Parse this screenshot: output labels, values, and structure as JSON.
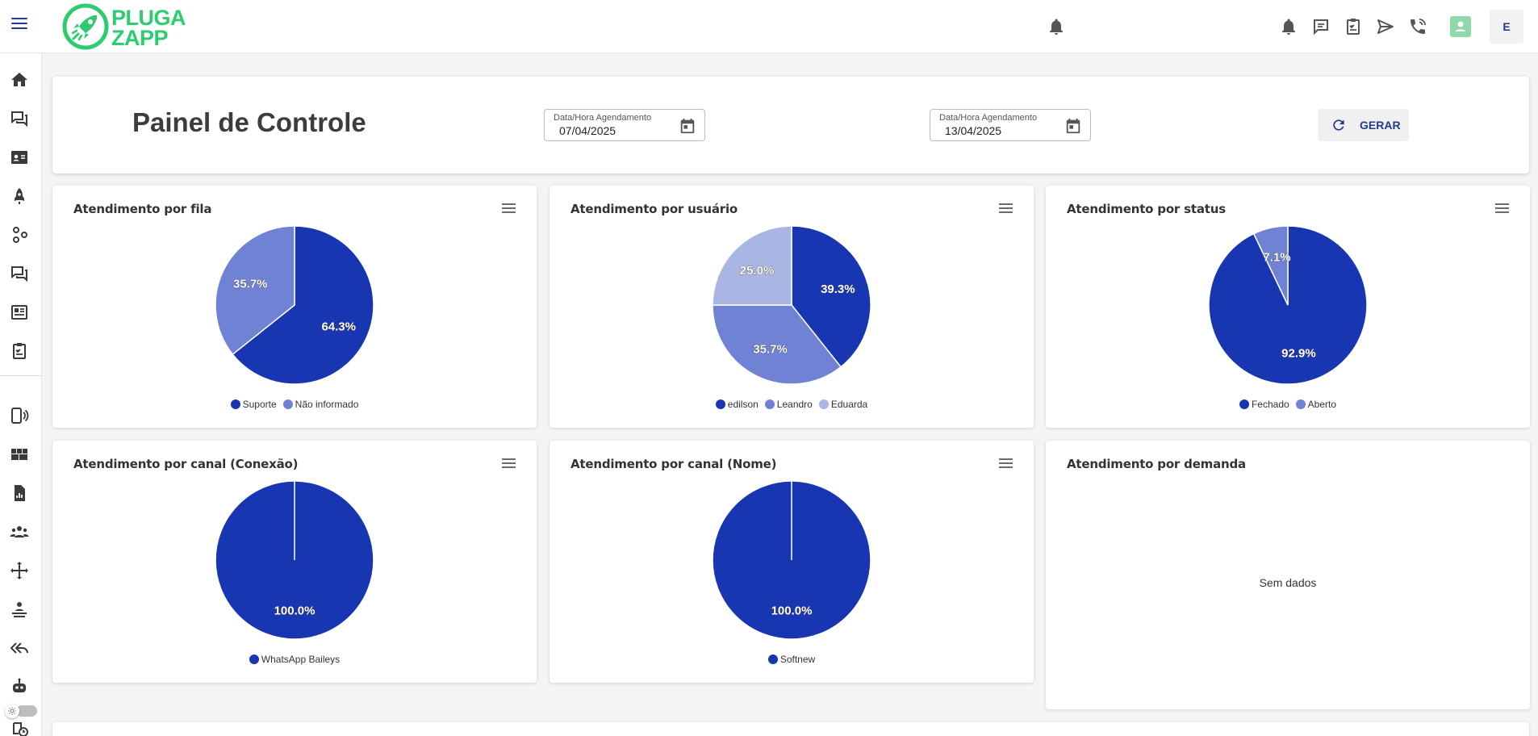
{
  "brand": {
    "line1": "PLUGA",
    "line2": "ZAPP",
    "color": "#2ecc71"
  },
  "header": {
    "title": "Painel de Controle",
    "date_start": {
      "label": "Data/Hora Agendamento",
      "value": "07/04/2025"
    },
    "date_end": {
      "label": "Data/Hora Agendamento",
      "value": "13/04/2025"
    },
    "generate_label": "GERAR"
  },
  "user": {
    "initial": "E"
  },
  "top_icons": [
    "bell-icon",
    "chat-icon",
    "clipboard-icon",
    "send-icon",
    "phone-call-icon",
    "contact-icon"
  ],
  "sidebar_icons": [
    "home-icon",
    "chats-icon",
    "contact-card-icon",
    "rocket-icon",
    "integrations-icon",
    "chats-alt-icon",
    "kanban-icon",
    "tasks-icon",
    "connections-icon",
    "dashboard-icon",
    "reports-icon",
    "users-icon",
    "flow-icon",
    "queues-icon",
    "quick-replies-icon",
    "bot-icon",
    "schedule-icon"
  ],
  "colors": {
    "primary": "#1f3b8c",
    "series": [
      "#1836b2",
      "#6f82d4",
      "#a9b5e2"
    ]
  },
  "chart_data": [
    {
      "type": "pie",
      "title": "Atendimento por fila",
      "categories": [
        "Suporte",
        "Não informado"
      ],
      "values": [
        64.3,
        35.7
      ],
      "labels": [
        "64.3%",
        "35.7%"
      ],
      "legend": "bottom"
    },
    {
      "type": "pie",
      "title": "Atendimento por usuário",
      "categories": [
        "edilson",
        "Leandro",
        "Eduarda"
      ],
      "values": [
        39.3,
        35.7,
        25.0
      ],
      "labels": [
        "39.3%",
        "35.7%",
        "25.0%"
      ],
      "legend": "bottom"
    },
    {
      "type": "pie",
      "title": "Atendimento por status",
      "categories": [
        "Fechado",
        "Aberto"
      ],
      "values": [
        92.9,
        7.1
      ],
      "labels": [
        "92.9%",
        "7.1%"
      ],
      "legend": "bottom"
    },
    {
      "type": "pie",
      "title": "Atendimento por canal (Conexão)",
      "categories": [
        "WhatsApp Baileys"
      ],
      "values": [
        100.0
      ],
      "labels": [
        "100.0%"
      ],
      "legend": "bottom"
    },
    {
      "type": "pie",
      "title": "Atendimento por canal (Nome)",
      "categories": [
        "Softnew"
      ],
      "values": [
        100.0
      ],
      "labels": [
        "100.0%"
      ],
      "legend": "bottom"
    },
    {
      "type": "pie",
      "title": "Atendimento por demanda",
      "categories": [],
      "values": [],
      "empty_text": "Sem dados"
    }
  ]
}
